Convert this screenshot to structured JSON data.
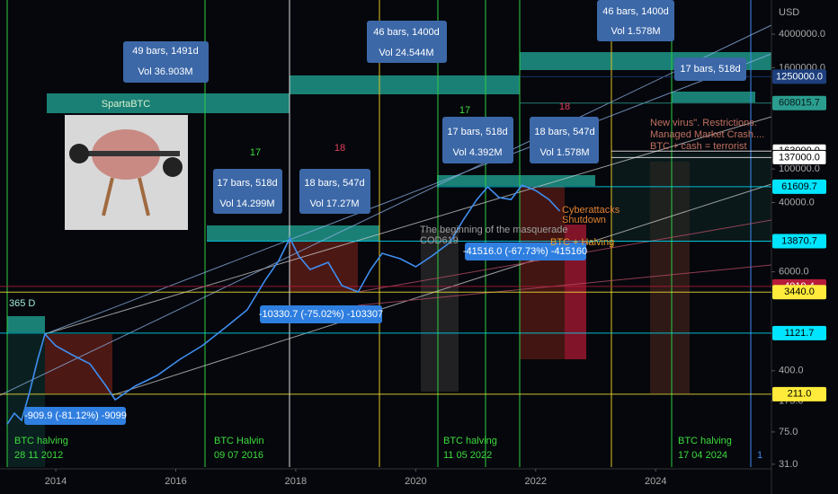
{
  "chart_data": {
    "type": "line",
    "y_label": "USD",
    "log_scale": true,
    "grid": false,
    "color": "#3f8ef0",
    "xlim": [
      2013.07,
      2025.93
    ],
    "xticks": [
      2014,
      2016,
      2018,
      2020,
      2022,
      2024
    ],
    "ylim": [
      28.7,
      10200000
    ],
    "yticks": [
      {
        "value": 4000000,
        "label": "4000000.0"
      },
      {
        "value": 1600000,
        "label": "1600000.0"
      },
      {
        "value": 100000,
        "label": "100000.0"
      },
      {
        "value": 40000,
        "label": "40000.0"
      },
      {
        "value": 6000,
        "label": "6000.0"
      },
      {
        "value": 400,
        "label": "400.0"
      },
      {
        "value": 175,
        "label": "175.0"
      },
      {
        "value": 75,
        "label": "75.0"
      },
      {
        "value": 31,
        "label": "31.0"
      }
    ],
    "x": [
      2013.19,
      2013.31,
      2013.43,
      2013.55,
      2013.7,
      2013.82,
      2014.0,
      2014.27,
      2014.57,
      2014.84,
      2014.99,
      2015.32,
      2015.69,
      2016.07,
      2016.44,
      2016.82,
      2017.19,
      2017.49,
      2017.72,
      2017.9,
      2018.05,
      2018.24,
      2018.54,
      2018.77,
      2019.04,
      2019.25,
      2019.44,
      2019.74,
      2020.0,
      2020.27,
      2020.57,
      2020.79,
      2021.02,
      2021.2,
      2021.39,
      2021.59,
      2021.77,
      2022.0,
      2022.22,
      2022.4
    ],
    "values": [
      93,
      125,
      103,
      205,
      548,
      1091,
      792,
      619,
      484,
      262,
      181,
      262,
      352,
      548,
      792,
      1294,
      2118,
      4764,
      8185,
      15100,
      9247,
      6397,
      7780,
      4111,
      3459,
      6397,
      9954,
      8590,
      6887,
      9247,
      13370,
      24720,
      43450,
      61380,
      45710,
      43450,
      64420,
      55590,
      43450,
      31620
    ],
    "levels": [
      {
        "value": 1250000,
        "label": "1250000.0",
        "color": "#1d3f7d",
        "text_color": "#ffffff"
      },
      {
        "value": 608015.7,
        "label": "608015.7",
        "color": "#2a9d8f",
        "text_color": "#0a1a1a"
      },
      {
        "value": 163000,
        "label": "163000.0",
        "color": "#ffffff",
        "text_color": "#000000"
      },
      {
        "value": 137000,
        "label": "137000.0",
        "color": "#ffffff",
        "text_color": "#000000"
      },
      {
        "value": 61609.7,
        "label": "61609.7",
        "color": "#00e5ff",
        "text_color": "#000000"
      },
      {
        "value": 13870.7,
        "label": "13870.7",
        "color": "#00e5ff",
        "text_color": "#000000"
      },
      {
        "value": 4019.4,
        "label": "4019.4",
        "color": "#b71c3a",
        "text_color": "#ffffff"
      },
      {
        "value": 3440,
        "label": "3440.0",
        "color": "#ffeb3b",
        "text_color": "#000000"
      },
      {
        "value": 1121.7,
        "label": "1121.7",
        "color": "#00e5ff",
        "text_color": "#000000"
      },
      {
        "value": 211,
        "label": "211.0",
        "color": "#ffeb3b",
        "text_color": "#000000"
      }
    ],
    "annotations": [
      "365 D",
      "SpartaBTC",
      "49 bars, 1491d",
      "Vol 36.903M",
      "17 bars, 518d",
      "Vol 14.299M",
      "17",
      "18",
      "18 bars, 547d",
      "Vol 17.27M",
      "46 bars, 1400d",
      "Vol 24.544M",
      "17",
      "17 bars, 518d",
      "Vol 4.392M",
      "18",
      "18 bars, 547d",
      "Vol 1.578M",
      "46 bars, 1400d",
      "Vol 1.578M",
      "17 bars, 518d",
      "New virus\". Restrictions.",
      "Managed Market Crash....",
      "BTC + cash = terrorist",
      "The beginning of the masquerade",
      "COD619",
      "Cyberattacks",
      "Shutdown",
      "BTC + Halving",
      "-909.9 (-81.12%) -9099",
      "-10330.7 (-75.02%) -103307",
      "-41516.0 (-67.73%) -415160",
      "BTC halving",
      "28 11 2012",
      "BTC Halvin",
      "09 07 2016",
      "BTC halving",
      "11 05 2022",
      "BTC halving",
      "17 04 2024",
      "1"
    ]
  }
}
